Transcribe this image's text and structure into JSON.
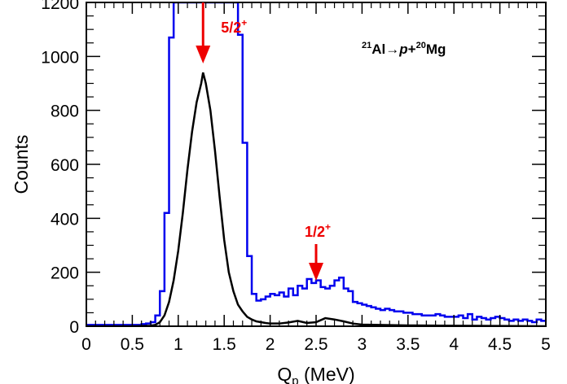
{
  "chart_data": {
    "type": "line",
    "xlabel_main": "Q",
    "xlabel_sub": "p",
    "xlabel_unit": " (MeV)",
    "ylabel": "Counts",
    "xlim": [
      0,
      5
    ],
    "ylim": [
      0,
      1200
    ],
    "x_ticks": [
      "0",
      "0.5",
      "1",
      "1.5",
      "2",
      "2.5",
      "3",
      "3.5",
      "4",
      "4.5",
      "5"
    ],
    "y_ticks": [
      "0",
      "200",
      "400",
      "600",
      "800",
      "1000",
      "1200"
    ],
    "reaction_label": {
      "a_mass": "21",
      "a_sym": "Al",
      "arrow": "→",
      "p": "p",
      "plus": "+",
      "b_mass": "20",
      "b_sym": "Mg"
    },
    "annotations": [
      {
        "text": "5/2",
        "sup": "+",
        "x": 1.27,
        "color": "#ee0000"
      },
      {
        "text": "1/2",
        "sup": "+",
        "x": 2.5,
        "color": "#ee0000"
      }
    ],
    "series": [
      {
        "color": "#0000ee",
        "style": "step",
        "x": [
          0.0,
          0.05,
          0.1,
          0.15,
          0.2,
          0.25,
          0.3,
          0.35,
          0.4,
          0.45,
          0.5,
          0.55,
          0.6,
          0.65,
          0.7,
          0.75,
          0.8,
          0.85,
          0.9,
          0.95,
          1.0,
          1.05,
          1.1,
          1.15,
          1.2,
          1.25,
          1.3,
          1.35,
          1.4,
          1.45,
          1.5,
          1.55,
          1.6,
          1.65,
          1.7,
          1.75,
          1.8,
          1.85,
          1.9,
          1.95,
          2.0,
          2.05,
          2.1,
          2.15,
          2.2,
          2.25,
          2.3,
          2.35,
          2.4,
          2.45,
          2.5,
          2.55,
          2.6,
          2.65,
          2.7,
          2.75,
          2.8,
          2.85,
          2.9,
          2.95,
          3.0,
          3.05,
          3.1,
          3.15,
          3.2,
          3.25,
          3.3,
          3.35,
          3.4,
          3.45,
          3.5,
          3.55,
          3.6,
          3.65,
          3.7,
          3.75,
          3.8,
          3.85,
          3.9,
          3.95,
          4.0,
          4.05,
          4.1,
          4.15,
          4.2,
          4.25,
          4.3,
          4.35,
          4.4,
          4.45,
          4.5,
          4.55,
          4.6,
          4.65,
          4.7,
          4.75,
          4.8,
          4.85,
          4.9,
          4.95
        ],
        "values": [
          5,
          5,
          5,
          5,
          5,
          5,
          5,
          5,
          5,
          5,
          5,
          5,
          8,
          10,
          15,
          40,
          130,
          420,
          1070,
          1200,
          1200,
          1200,
          1200,
          1200,
          1200,
          1200,
          1200,
          1200,
          1200,
          1200,
          1200,
          1200,
          1200,
          1080,
          680,
          260,
          120,
          95,
          100,
          110,
          120,
          115,
          125,
          110,
          140,
          115,
          150,
          140,
          175,
          160,
          170,
          145,
          140,
          150,
          170,
          180,
          140,
          130,
          90,
          85,
          80,
          75,
          70,
          65,
          60,
          65,
          60,
          55,
          55,
          50,
          50,
          45,
          45,
          40,
          40,
          40,
          45,
          40,
          35,
          35,
          35,
          40,
          30,
          45,
          25,
          35,
          30,
          25,
          30,
          35,
          30,
          25,
          20,
          25,
          20,
          25,
          20,
          15,
          25,
          20
        ]
      },
      {
        "color": "#000000",
        "style": "line",
        "x": [
          0.0,
          0.5,
          0.7,
          0.75,
          0.8,
          0.85,
          0.9,
          0.95,
          1.0,
          1.05,
          1.1,
          1.15,
          1.2,
          1.25,
          1.27,
          1.3,
          1.35,
          1.4,
          1.45,
          1.5,
          1.55,
          1.6,
          1.65,
          1.7,
          1.75,
          1.8,
          1.85,
          1.9,
          1.95,
          2.0,
          2.1,
          2.2,
          2.3,
          2.4,
          2.5,
          2.6,
          2.7,
          2.8,
          2.9,
          3.0,
          3.5,
          4.0,
          4.5,
          5.0
        ],
        "values": [
          0,
          0,
          2,
          5,
          15,
          40,
          90,
          170,
          280,
          420,
          580,
          720,
          830,
          900,
          940,
          900,
          800,
          650,
          480,
          320,
          200,
          130,
          80,
          55,
          35,
          25,
          18,
          15,
          12,
          10,
          10,
          14,
          20,
          12,
          15,
          30,
          25,
          18,
          10,
          6,
          3,
          2,
          1,
          0
        ]
      }
    ]
  }
}
